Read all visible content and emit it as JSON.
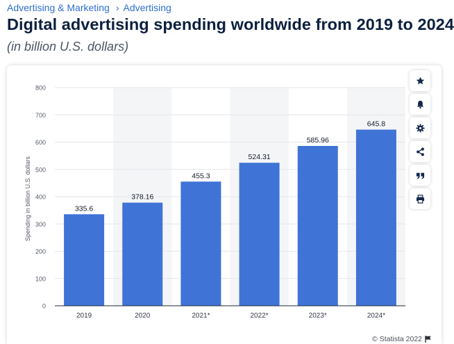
{
  "breadcrumb": {
    "items": [
      "Advertising & Marketing",
      "Advertising"
    ],
    "separator": "›"
  },
  "title": "Digital advertising spending worldwide from 2019 to 2024",
  "subtitle": "(in billion U.S. dollars)",
  "toolbar": {
    "icons": [
      "star-icon",
      "bell-icon",
      "gear-icon",
      "share-icon",
      "quote-icon",
      "print-icon"
    ]
  },
  "credit": {
    "text": "© Statista 2022",
    "icon": "flag-icon"
  },
  "colors": {
    "bar": "#3f73d6",
    "grid": "#e3e6eb",
    "band": "#f4f5f7",
    "accent": "#2e6fd0",
    "icon": "#13284a"
  },
  "chart_data": {
    "type": "bar",
    "categories": [
      "2019",
      "2020",
      "2021*",
      "2022*",
      "2023*",
      "2024*"
    ],
    "values": [
      335.6,
      378.16,
      455.3,
      524.31,
      585.96,
      645.8
    ],
    "value_labels": [
      "335.6",
      "378.16",
      "455.3",
      "524.31",
      "585.96",
      "645.8"
    ],
    "title": "",
    "xlabel": "",
    "ylabel": "Spending in billion U.S. dollars",
    "ylim": [
      0,
      800
    ],
    "yticks": [
      0,
      100,
      200,
      300,
      400,
      500,
      600,
      700,
      800
    ],
    "grid": true,
    "alternating_bands": true
  }
}
